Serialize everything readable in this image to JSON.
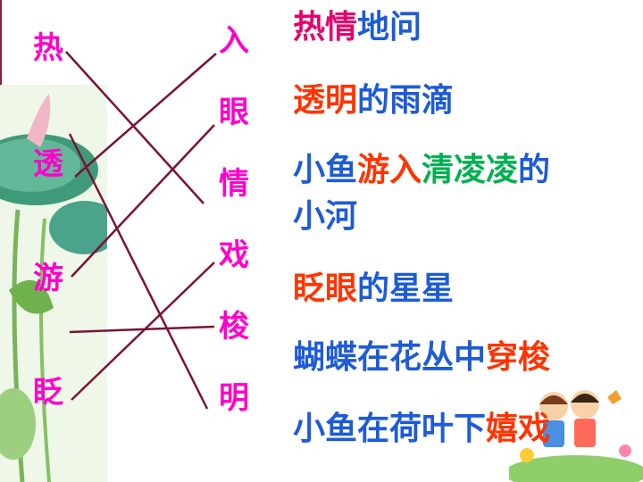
{
  "left_chars": [
    "热",
    "透",
    "游",
    "眨"
  ],
  "right_chars": [
    "入",
    "眼",
    "情",
    "戏",
    "梭",
    "明"
  ],
  "phrases": [
    {
      "segments": [
        {
          "text": "热",
          "color": "pink"
        },
        {
          "text": "情",
          "color": "pink"
        },
        {
          "text": "地问",
          "color": "blue"
        }
      ]
    },
    {
      "segments": [
        {
          "text": "透明",
          "color": "red"
        },
        {
          "text": "的雨滴",
          "color": "blue"
        }
      ]
    },
    {
      "segments": [
        {
          "text": "小鱼",
          "color": "blue"
        },
        {
          "text": "游入",
          "color": "red"
        },
        {
          "text": "清凌凌",
          "color": "green"
        },
        {
          "text": "的",
          "color": "blue"
        }
      ]
    },
    {
      "segments": [
        {
          "text": "小河",
          "color": "blue"
        }
      ]
    },
    {
      "segments": [
        {
          "text": "眨眼",
          "color": "red"
        },
        {
          "text": "的星星",
          "color": "blue"
        }
      ]
    },
    {
      "segments": [
        {
          "text": "蝴蝶在花丛中",
          "color": "blue"
        },
        {
          "text": "穿梭",
          "color": "red"
        }
      ]
    },
    {
      "segments": [
        {
          "text": "小鱼在荷叶下",
          "color": "blue"
        },
        {
          "text": "嬉戏",
          "color": "red"
        }
      ]
    }
  ],
  "colors": {
    "char_pink": "#ff00cc",
    "line": "#7a1238",
    "blue": "#1e5bd6",
    "red": "#ff3300",
    "green": "#00b050"
  }
}
